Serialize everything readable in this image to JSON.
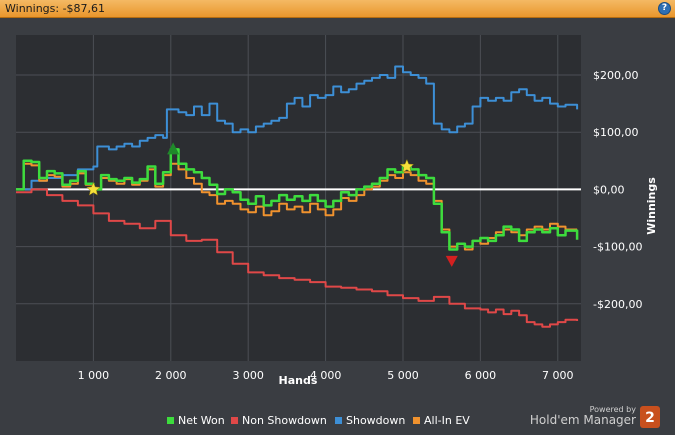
{
  "window": {
    "title": "Winnings: -$87,61",
    "help_icon": "question-mark-icon"
  },
  "branding": {
    "powered_by": "Powered by",
    "product": "Hold'em Manager",
    "badge": "2"
  },
  "colors": {
    "background": "#3a3d42",
    "plot_background": "#2c2e32",
    "grid": "#4c4f55",
    "zero_line": "#ffffff",
    "net_won": "#3ddc3d",
    "non_showdown": "#e04848",
    "showdown": "#3d8fd6",
    "all_in_ev": "#f0922e",
    "star": "#f5e03a",
    "up_marker": "#1f8a2a",
    "down_marker": "#d42020"
  },
  "chart_data": {
    "type": "line",
    "title": "",
    "xlabel": "Hands",
    "ylabel": "Winnings",
    "xlim": [
      0,
      7300
    ],
    "ylim": [
      -300,
      270
    ],
    "x_ticks": [
      1000,
      2000,
      3000,
      4000,
      5000,
      6000,
      7000
    ],
    "x_tick_labels": [
      "1 000",
      "2 000",
      "3 000",
      "4 000",
      "5 000",
      "6 000",
      "7 000"
    ],
    "y_ticks": [
      200,
      100,
      0,
      -100,
      -200
    ],
    "y_tick_labels": [
      "$200,00",
      "$100,00",
      "$0,00",
      "-$100,00",
      "-$200,00"
    ],
    "grid": true,
    "legend_position": "bottom",
    "series": [
      {
        "name": "Net Won",
        "color": "#3ddc3d",
        "points": [
          [
            0,
            0
          ],
          [
            100,
            50
          ],
          [
            200,
            48
          ],
          [
            300,
            20
          ],
          [
            400,
            32
          ],
          [
            500,
            28
          ],
          [
            600,
            8
          ],
          [
            700,
            15
          ],
          [
            800,
            32
          ],
          [
            900,
            10
          ],
          [
            1000,
            0
          ],
          [
            1100,
            25
          ],
          [
            1200,
            18
          ],
          [
            1300,
            15
          ],
          [
            1400,
            20
          ],
          [
            1500,
            12
          ],
          [
            1600,
            18
          ],
          [
            1700,
            40
          ],
          [
            1800,
            10
          ],
          [
            1900,
            30
          ],
          [
            2000,
            70
          ],
          [
            2100,
            45
          ],
          [
            2200,
            35
          ],
          [
            2300,
            30
          ],
          [
            2400,
            20
          ],
          [
            2500,
            8
          ],
          [
            2600,
            -8
          ],
          [
            2700,
            0
          ],
          [
            2800,
            -5
          ],
          [
            2900,
            -18
          ],
          [
            3000,
            -25
          ],
          [
            3100,
            -12
          ],
          [
            3200,
            -28
          ],
          [
            3300,
            -20
          ],
          [
            3400,
            -10
          ],
          [
            3500,
            -18
          ],
          [
            3600,
            -12
          ],
          [
            3700,
            -20
          ],
          [
            3800,
            -10
          ],
          [
            3900,
            -20
          ],
          [
            4000,
            -30
          ],
          [
            4100,
            -20
          ],
          [
            4200,
            -5
          ],
          [
            4300,
            -10
          ],
          [
            4400,
            0
          ],
          [
            4500,
            5
          ],
          [
            4600,
            10
          ],
          [
            4700,
            20
          ],
          [
            4800,
            35
          ],
          [
            4900,
            30
          ],
          [
            5000,
            40
          ],
          [
            5100,
            35
          ],
          [
            5200,
            25
          ],
          [
            5300,
            20
          ],
          [
            5400,
            -25
          ],
          [
            5500,
            -75
          ],
          [
            5600,
            -105
          ],
          [
            5700,
            -95
          ],
          [
            5800,
            -100
          ],
          [
            5900,
            -90
          ],
          [
            6000,
            -85
          ],
          [
            6100,
            -90
          ],
          [
            6200,
            -80
          ],
          [
            6300,
            -65
          ],
          [
            6400,
            -70
          ],
          [
            6500,
            -90
          ],
          [
            6600,
            -75
          ],
          [
            6700,
            -70
          ],
          [
            6800,
            -75
          ],
          [
            6900,
            -68
          ],
          [
            7000,
            -80
          ],
          [
            7100,
            -72
          ],
          [
            7250,
            -88
          ]
        ]
      },
      {
        "name": "Non Showdown",
        "color": "#e04848",
        "points": [
          [
            0,
            -5
          ],
          [
            200,
            0
          ],
          [
            400,
            -10
          ],
          [
            600,
            -20
          ],
          [
            800,
            -28
          ],
          [
            1000,
            -42
          ],
          [
            1200,
            -55
          ],
          [
            1400,
            -60
          ],
          [
            1600,
            -68
          ],
          [
            1800,
            -55
          ],
          [
            2000,
            -80
          ],
          [
            2200,
            -90
          ],
          [
            2400,
            -88
          ],
          [
            2600,
            -110
          ],
          [
            2800,
            -130
          ],
          [
            3000,
            -145
          ],
          [
            3200,
            -150
          ],
          [
            3400,
            -155
          ],
          [
            3600,
            -158
          ],
          [
            3800,
            -162
          ],
          [
            4000,
            -170
          ],
          [
            4200,
            -172
          ],
          [
            4400,
            -175
          ],
          [
            4600,
            -178
          ],
          [
            4800,
            -185
          ],
          [
            5000,
            -190
          ],
          [
            5200,
            -195
          ],
          [
            5400,
            -188
          ],
          [
            5600,
            -200
          ],
          [
            5800,
            -208
          ],
          [
            6000,
            -210
          ],
          [
            6100,
            -215
          ],
          [
            6200,
            -210
          ],
          [
            6300,
            -218
          ],
          [
            6400,
            -212
          ],
          [
            6500,
            -220
          ],
          [
            6600,
            -232
          ],
          [
            6700,
            -236
          ],
          [
            6800,
            -240
          ],
          [
            6900,
            -236
          ],
          [
            7000,
            -232
          ],
          [
            7100,
            -228
          ],
          [
            7250,
            -230
          ]
        ]
      },
      {
        "name": "Showdown",
        "color": "#3d8fd6",
        "points": [
          [
            0,
            0
          ],
          [
            200,
            15
          ],
          [
            400,
            20
          ],
          [
            600,
            25
          ],
          [
            800,
            35
          ],
          [
            1000,
            40
          ],
          [
            1050,
            75
          ],
          [
            1200,
            70
          ],
          [
            1300,
            75
          ],
          [
            1400,
            80
          ],
          [
            1500,
            75
          ],
          [
            1600,
            85
          ],
          [
            1700,
            90
          ],
          [
            1800,
            95
          ],
          [
            1900,
            90
          ],
          [
            1950,
            140
          ],
          [
            2100,
            135
          ],
          [
            2200,
            130
          ],
          [
            2300,
            145
          ],
          [
            2400,
            130
          ],
          [
            2500,
            150
          ],
          [
            2600,
            120
          ],
          [
            2700,
            115
          ],
          [
            2800,
            100
          ],
          [
            2900,
            105
          ],
          [
            3000,
            100
          ],
          [
            3100,
            110
          ],
          [
            3200,
            115
          ],
          [
            3300,
            120
          ],
          [
            3400,
            125
          ],
          [
            3500,
            150
          ],
          [
            3600,
            160
          ],
          [
            3700,
            145
          ],
          [
            3800,
            165
          ],
          [
            3900,
            160
          ],
          [
            4000,
            165
          ],
          [
            4100,
            180
          ],
          [
            4200,
            170
          ],
          [
            4300,
            175
          ],
          [
            4400,
            185
          ],
          [
            4500,
            190
          ],
          [
            4600,
            195
          ],
          [
            4700,
            200
          ],
          [
            4800,
            195
          ],
          [
            4900,
            215
          ],
          [
            5000,
            205
          ],
          [
            5100,
            200
          ],
          [
            5200,
            195
          ],
          [
            5300,
            185
          ],
          [
            5400,
            115
          ],
          [
            5500,
            105
          ],
          [
            5600,
            100
          ],
          [
            5700,
            110
          ],
          [
            5800,
            115
          ],
          [
            5900,
            145
          ],
          [
            6000,
            160
          ],
          [
            6100,
            155
          ],
          [
            6200,
            160
          ],
          [
            6300,
            155
          ],
          [
            6400,
            170
          ],
          [
            6500,
            175
          ],
          [
            6600,
            165
          ],
          [
            6700,
            155
          ],
          [
            6800,
            160
          ],
          [
            6900,
            150
          ],
          [
            7000,
            145
          ],
          [
            7100,
            148
          ],
          [
            7250,
            140
          ]
        ]
      },
      {
        "name": "All-In EV",
        "color": "#f0922e",
        "points": [
          [
            0,
            0
          ],
          [
            100,
            45
          ],
          [
            200,
            42
          ],
          [
            300,
            15
          ],
          [
            400,
            25
          ],
          [
            500,
            22
          ],
          [
            600,
            5
          ],
          [
            700,
            10
          ],
          [
            800,
            28
          ],
          [
            900,
            8
          ],
          [
            1000,
            0
          ],
          [
            1100,
            20
          ],
          [
            1200,
            15
          ],
          [
            1300,
            10
          ],
          [
            1400,
            18
          ],
          [
            1500,
            8
          ],
          [
            1600,
            15
          ],
          [
            1700,
            35
          ],
          [
            1800,
            5
          ],
          [
            1900,
            25
          ],
          [
            2000,
            45
          ],
          [
            2100,
            35
          ],
          [
            2200,
            20
          ],
          [
            2300,
            10
          ],
          [
            2400,
            -5
          ],
          [
            2500,
            -10
          ],
          [
            2600,
            -25
          ],
          [
            2700,
            -20
          ],
          [
            2800,
            -25
          ],
          [
            2900,
            -35
          ],
          [
            3000,
            -40
          ],
          [
            3100,
            -30
          ],
          [
            3200,
            -45
          ],
          [
            3300,
            -38
          ],
          [
            3400,
            -25
          ],
          [
            3500,
            -35
          ],
          [
            3600,
            -30
          ],
          [
            3700,
            -40
          ],
          [
            3800,
            -25
          ],
          [
            3900,
            -35
          ],
          [
            4000,
            -45
          ],
          [
            4100,
            -35
          ],
          [
            4200,
            -15
          ],
          [
            4300,
            -20
          ],
          [
            4400,
            -10
          ],
          [
            4500,
            0
          ],
          [
            4600,
            5
          ],
          [
            4700,
            15
          ],
          [
            4800,
            25
          ],
          [
            4900,
            20
          ],
          [
            5000,
            30
          ],
          [
            5100,
            25
          ],
          [
            5200,
            15
          ],
          [
            5300,
            10
          ],
          [
            5400,
            -20
          ],
          [
            5500,
            -70
          ],
          [
            5600,
            -100
          ],
          [
            5700,
            -95
          ],
          [
            5800,
            -105
          ],
          [
            5900,
            -90
          ],
          [
            6000,
            -95
          ],
          [
            6100,
            -85
          ],
          [
            6200,
            -75
          ],
          [
            6300,
            -70
          ],
          [
            6400,
            -75
          ],
          [
            6500,
            -80
          ],
          [
            6600,
            -70
          ],
          [
            6700,
            -65
          ],
          [
            6800,
            -70
          ],
          [
            6900,
            -60
          ],
          [
            7000,
            -65
          ],
          [
            7100,
            -70
          ],
          [
            7250,
            -70
          ]
        ]
      }
    ],
    "markers": [
      {
        "type": "star",
        "x": 1000,
        "y": 0
      },
      {
        "type": "star",
        "x": 5050,
        "y": 40
      },
      {
        "type": "triangle-up",
        "x": 2030,
        "y": 70
      },
      {
        "type": "triangle-down",
        "x": 5630,
        "y": -125
      }
    ]
  }
}
